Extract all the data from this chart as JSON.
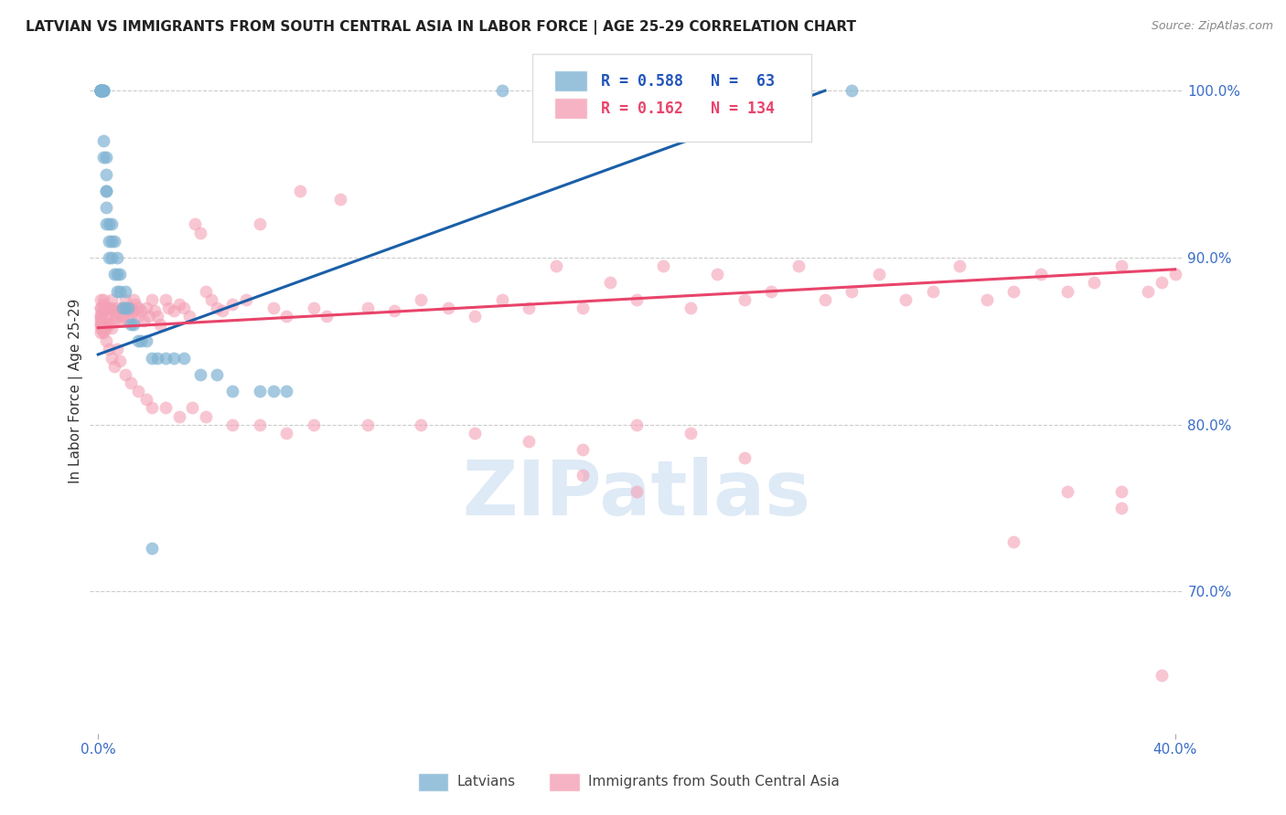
{
  "title": "LATVIAN VS IMMIGRANTS FROM SOUTH CENTRAL ASIA IN LABOR FORCE | AGE 25-29 CORRELATION CHART",
  "source": "Source: ZipAtlas.com",
  "ylabel": "In Labor Force | Age 25-29",
  "xlim": [
    -0.003,
    0.403
  ],
  "ylim": [
    0.615,
    1.025
  ],
  "plot_ylim": [
    0.615,
    1.025
  ],
  "xticks": [
    0.0,
    0.4
  ],
  "xticklabels": [
    "0.0%",
    "40.0%"
  ],
  "yticks_right": [
    1.0,
    0.9,
    0.8,
    0.7
  ],
  "ytick_right_labels": [
    "100.0%",
    "90.0%",
    "80.0%",
    "70.0%"
  ],
  "latvians_R": 0.588,
  "latvians_N": 63,
  "immigrants_R": 0.162,
  "immigrants_N": 134,
  "latvian_color": "#7FB3D3",
  "immigrant_color": "#F4A0B5",
  "latvian_line_color": "#1A5FA8",
  "immigrant_line_color": "#E8446A",
  "legend_latvians": "Latvians",
  "legend_immigrants": "Immigrants from South Central Asia",
  "watermark_text": "ZIPatlas",
  "latvians_x": [
    0.001,
    0.001,
    0.001,
    0.001,
    0.001,
    0.001,
    0.001,
    0.001,
    0.001,
    0.001,
    0.001,
    0.001,
    0.002,
    0.002,
    0.002,
    0.002,
    0.002,
    0.002,
    0.002,
    0.003,
    0.003,
    0.003,
    0.003,
    0.003,
    0.003,
    0.004,
    0.004,
    0.004,
    0.005,
    0.005,
    0.005,
    0.006,
    0.006,
    0.007,
    0.007,
    0.007,
    0.008,
    0.008,
    0.009,
    0.01,
    0.01,
    0.011,
    0.012,
    0.013,
    0.015,
    0.016,
    0.018,
    0.02,
    0.022,
    0.025,
    0.028,
    0.032,
    0.038,
    0.044,
    0.05,
    0.06,
    0.065,
    0.07,
    0.15,
    0.19,
    0.24,
    0.26,
    0.28
  ],
  "latvians_y": [
    1.0,
    1.0,
    1.0,
    1.0,
    1.0,
    1.0,
    1.0,
    1.0,
    1.0,
    1.0,
    1.0,
    1.0,
    1.0,
    1.0,
    1.0,
    1.0,
    1.0,
    0.97,
    0.96,
    0.96,
    0.95,
    0.94,
    0.94,
    0.93,
    0.92,
    0.92,
    0.91,
    0.9,
    0.92,
    0.91,
    0.9,
    0.91,
    0.89,
    0.9,
    0.89,
    0.88,
    0.89,
    0.88,
    0.87,
    0.88,
    0.87,
    0.87,
    0.86,
    0.86,
    0.85,
    0.85,
    0.85,
    0.84,
    0.84,
    0.84,
    0.84,
    0.84,
    0.83,
    0.83,
    0.82,
    0.82,
    0.82,
    0.82,
    1.0,
    1.0,
    1.0,
    1.0,
    1.0
  ],
  "immigrants_x": [
    0.001,
    0.001,
    0.001,
    0.001,
    0.001,
    0.001,
    0.001,
    0.001,
    0.001,
    0.001,
    0.002,
    0.002,
    0.002,
    0.002,
    0.002,
    0.003,
    0.003,
    0.003,
    0.003,
    0.004,
    0.004,
    0.004,
    0.005,
    0.005,
    0.005,
    0.006,
    0.006,
    0.007,
    0.007,
    0.008,
    0.008,
    0.009,
    0.009,
    0.01,
    0.01,
    0.011,
    0.011,
    0.012,
    0.012,
    0.013,
    0.013,
    0.014,
    0.015,
    0.015,
    0.016,
    0.017,
    0.018,
    0.019,
    0.02,
    0.021,
    0.022,
    0.023,
    0.025,
    0.026,
    0.028,
    0.03,
    0.032,
    0.034,
    0.036,
    0.038,
    0.04,
    0.042,
    0.044,
    0.046,
    0.05,
    0.055,
    0.06,
    0.065,
    0.07,
    0.075,
    0.08,
    0.085,
    0.09,
    0.1,
    0.11,
    0.12,
    0.13,
    0.14,
    0.15,
    0.16,
    0.17,
    0.18,
    0.19,
    0.2,
    0.21,
    0.22,
    0.23,
    0.24,
    0.25,
    0.26,
    0.27,
    0.28,
    0.29,
    0.3,
    0.31,
    0.32,
    0.33,
    0.34,
    0.35,
    0.36,
    0.37,
    0.38,
    0.39,
    0.395,
    0.4,
    0.001,
    0.002,
    0.003,
    0.004,
    0.005,
    0.006,
    0.007,
    0.008,
    0.01,
    0.012,
    0.015,
    0.018,
    0.02,
    0.025,
    0.03,
    0.035,
    0.04,
    0.05,
    0.06,
    0.07,
    0.08,
    0.1,
    0.12,
    0.14,
    0.16,
    0.18,
    0.2,
    0.22,
    0.24
  ],
  "immigrants_y": [
    0.87,
    0.866,
    0.862,
    0.875,
    0.858,
    0.864,
    0.855,
    0.87,
    0.86,
    0.865,
    0.872,
    0.868,
    0.86,
    0.856,
    0.875,
    0.87,
    0.865,
    0.86,
    0.858,
    0.87,
    0.865,
    0.86,
    0.875,
    0.87,
    0.858,
    0.868,
    0.862,
    0.87,
    0.865,
    0.868,
    0.862,
    0.87,
    0.865,
    0.875,
    0.87,
    0.868,
    0.862,
    0.87,
    0.865,
    0.875,
    0.868,
    0.872,
    0.87,
    0.865,
    0.868,
    0.862,
    0.87,
    0.865,
    0.875,
    0.868,
    0.865,
    0.86,
    0.875,
    0.87,
    0.868,
    0.872,
    0.87,
    0.865,
    0.92,
    0.915,
    0.88,
    0.875,
    0.87,
    0.868,
    0.872,
    0.875,
    0.92,
    0.87,
    0.865,
    0.94,
    0.87,
    0.865,
    0.935,
    0.87,
    0.868,
    0.875,
    0.87,
    0.865,
    0.875,
    0.87,
    0.895,
    0.87,
    0.885,
    0.875,
    0.895,
    0.87,
    0.89,
    0.875,
    0.88,
    0.895,
    0.875,
    0.88,
    0.89,
    0.875,
    0.88,
    0.895,
    0.875,
    0.88,
    0.89,
    0.88,
    0.885,
    0.895,
    0.88,
    0.885,
    0.89,
    0.86,
    0.855,
    0.85,
    0.845,
    0.84,
    0.835,
    0.845,
    0.838,
    0.83,
    0.825,
    0.82,
    0.815,
    0.81,
    0.81,
    0.805,
    0.81,
    0.805,
    0.8,
    0.8,
    0.795,
    0.8,
    0.8,
    0.8,
    0.795,
    0.79,
    0.785,
    0.8,
    0.795,
    0.78
  ],
  "pink_outliers_x": [
    0.18,
    0.2,
    0.36,
    0.38,
    0.38,
    0.395,
    0.34
  ],
  "pink_outliers_y": [
    0.77,
    0.76,
    0.76,
    0.76,
    0.75,
    0.65,
    0.73
  ],
  "blue_outlier_x": [
    0.02
  ],
  "blue_outlier_y": [
    0.726
  ]
}
